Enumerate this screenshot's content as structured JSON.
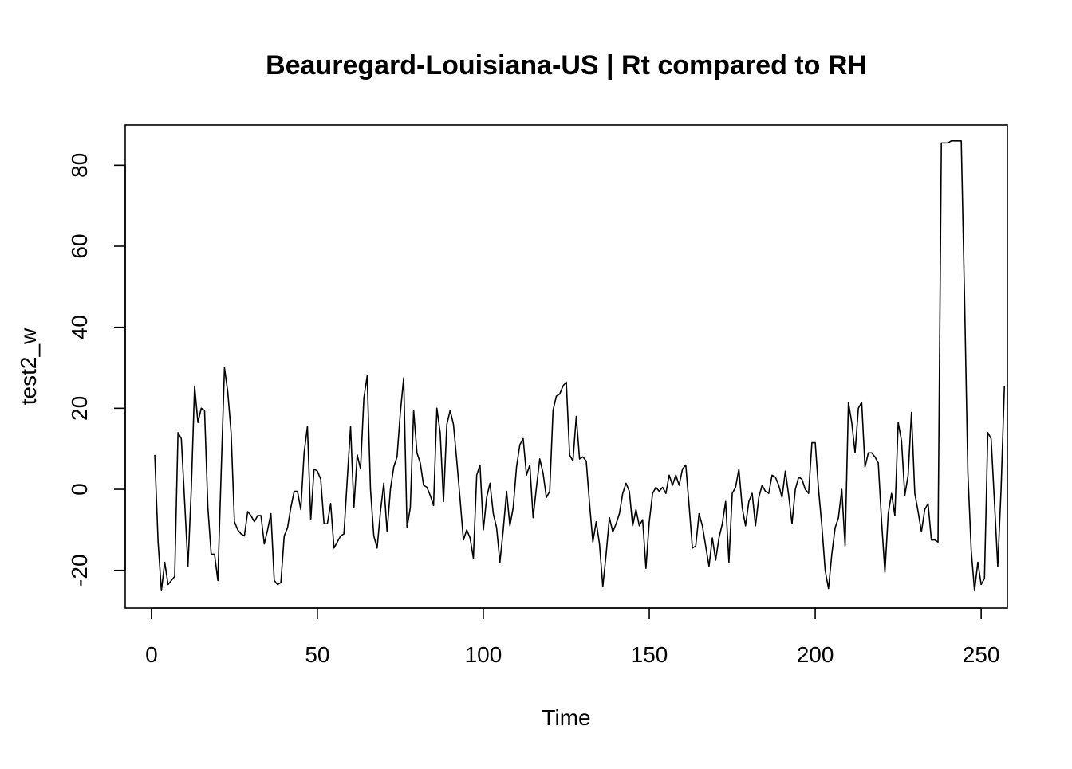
{
  "chart_data": {
    "type": "line",
    "title": "Beauregard-Louisiana-US | Rt compared to RH",
    "xlabel": "Time",
    "ylabel": "test2_w",
    "xlim": [
      -7.9,
      257.9
    ],
    "ylim": [
      -29.3,
      89.9
    ],
    "xticks": [
      0,
      50,
      100,
      150,
      200,
      250
    ],
    "yticks": [
      -20,
      0,
      20,
      40,
      60,
      80
    ],
    "grid": false,
    "legend": "none",
    "line_color": "#000000",
    "series": [
      {
        "x_start": 1,
        "values": [
          8.5,
          -13,
          -25,
          -18,
          -23.5,
          -22.5,
          -21.5,
          14,
          12.5,
          -3,
          -19,
          0,
          25.5,
          16.5,
          20,
          19.5,
          -4.5,
          -16,
          -16,
          -22.5,
          4,
          30,
          24,
          14,
          -8,
          -10,
          -11,
          -11.5,
          -5.5,
          -6.5,
          -8,
          -6.5,
          -6.5,
          -13.5,
          -10,
          -6,
          -22.5,
          -23.5,
          -23,
          -11.5,
          -9.5,
          -4.5,
          -0.5,
          -0.5,
          -5,
          9,
          15.5,
          -7.5,
          5,
          4.5,
          2.5,
          -8.5,
          -8.5,
          -3.5,
          -14.5,
          -13,
          -11.5,
          -11,
          2.5,
          15.5,
          -4.5,
          8.5,
          5,
          22.5,
          28,
          0,
          -11.5,
          -14.5,
          -5.5,
          1.5,
          -10.5,
          0,
          5.5,
          8,
          19,
          27.5,
          -9.5,
          -4.5,
          19.5,
          9,
          6.5,
          1,
          0.5,
          -1.5,
          -4,
          20,
          14,
          -3,
          16,
          19.5,
          16,
          7,
          -2.5,
          -12.5,
          -10,
          -12,
          -17,
          3.5,
          6,
          -10,
          -2,
          1.5,
          -6,
          -9.5,
          -18,
          -10,
          -0.5,
          -9,
          -4.5,
          5.5,
          11,
          12.5,
          3.5,
          6,
          -7,
          0.5,
          7.5,
          4,
          -2,
          -0.5,
          19.5,
          23,
          23.5,
          25.5,
          26.5,
          8.5,
          7,
          18,
          7.5,
          8,
          7,
          -3.5,
          -13,
          -8,
          -13.5,
          -24,
          -16,
          -7,
          -10.5,
          -8.5,
          -6,
          -1,
          1.5,
          -0.5,
          -9,
          -5,
          -9,
          -7.5,
          -19.5,
          -8,
          -1,
          0.5,
          -0.5,
          0.5,
          -1,
          3.5,
          1,
          3.5,
          1,
          5,
          6,
          -4,
          -14.5,
          -14,
          -6,
          -9,
          -14,
          -19,
          -12,
          -17.5,
          -12,
          -8.5,
          -3,
          -18,
          -1,
          0.5,
          5,
          -4.5,
          -9,
          -3,
          -1,
          -9,
          -2,
          1,
          -0.5,
          -1,
          3.5,
          3,
          1,
          -2,
          4.5,
          -1.5,
          -8.5,
          0,
          3,
          2.5,
          0,
          -1,
          11.5,
          11.5,
          0,
          -9,
          -20,
          -24.5,
          -16,
          -9.5,
          -7,
          0,
          -14,
          21.5,
          16.5,
          9,
          20,
          21.5,
          5.5,
          9,
          9,
          8,
          6.5,
          -8,
          -20.5,
          -6,
          -1,
          -6.5,
          16.5,
          12,
          -1.5,
          3.5,
          19,
          -1,
          -5.5,
          -10.5,
          -5,
          -3.5,
          -12.5,
          -12.5,
          -13,
          85.5,
          85.5,
          85.5,
          86,
          86,
          86,
          86,
          47,
          4,
          -15,
          -25,
          -18,
          -23.5,
          -22,
          14,
          12.5,
          -3,
          -19,
          0,
          25.5
        ]
      }
    ]
  }
}
